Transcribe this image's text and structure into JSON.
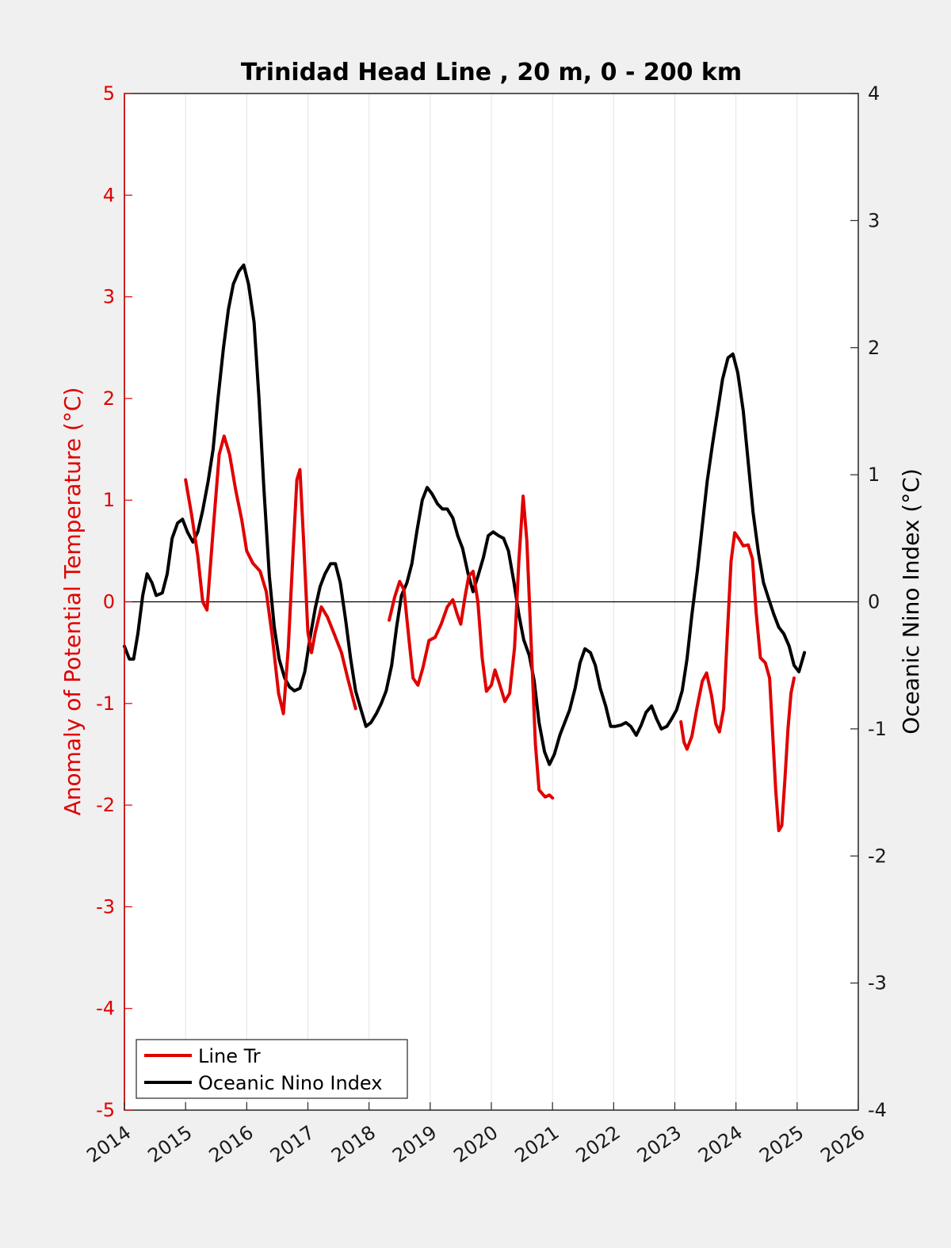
{
  "chart_data": {
    "type": "line",
    "title": "Trinidad Head Line , 20 m, 0 - 200 km",
    "xlabel": "",
    "ylabel_left": "Anomaly of Potential Temperature (°C)",
    "ylabel_right": "Oceanic Nino Index (°C)",
    "xlim": [
      2014,
      2026
    ],
    "ylim_left": [
      -5,
      5
    ],
    "ylim_right": [
      -4,
      4
    ],
    "x_ticks": [
      "2014",
      "2015",
      "2016",
      "2017",
      "2018",
      "2019",
      "2020",
      "2021",
      "2022",
      "2023",
      "2024",
      "2025",
      "2026"
    ],
    "y_ticks_left": [
      "-5",
      "-4",
      "-3",
      "-2",
      "-1",
      "0",
      "1",
      "2",
      "3",
      "4",
      "5"
    ],
    "y_ticks_right": [
      "-4",
      "-3",
      "-2",
      "-1",
      "0",
      "1",
      "2",
      "3",
      "4"
    ],
    "grid": "vertical",
    "legend_position": "bottom-left",
    "colors": {
      "line_tr": "#e00000",
      "oni": "#000000",
      "left_axis": "#e00000"
    },
    "series": [
      {
        "name": "Line Tr",
        "axis": "left",
        "segments": [
          [
            [
              2015.0,
              1.2
            ],
            [
              2015.1,
              0.85
            ],
            [
              2015.2,
              0.45
            ],
            [
              2015.28,
              0.0
            ],
            [
              2015.35,
              -0.08
            ],
            [
              2015.45,
              0.7
            ],
            [
              2015.55,
              1.45
            ],
            [
              2015.63,
              1.63
            ],
            [
              2015.72,
              1.45
            ],
            [
              2015.82,
              1.1
            ],
            [
              2015.92,
              0.8
            ],
            [
              2016.0,
              0.5
            ],
            [
              2016.1,
              0.38
            ],
            [
              2016.22,
              0.3
            ],
            [
              2016.32,
              0.1
            ],
            [
              2016.42,
              -0.35
            ],
            [
              2016.52,
              -0.9
            ],
            [
              2016.6,
              -1.1
            ],
            [
              2016.68,
              -0.45
            ],
            [
              2016.75,
              0.4
            ],
            [
              2016.82,
              1.2
            ],
            [
              2016.87,
              1.3
            ],
            [
              2016.93,
              0.6
            ],
            [
              2017.0,
              -0.3
            ],
            [
              2017.06,
              -0.5
            ],
            [
              2017.12,
              -0.3
            ],
            [
              2017.22,
              -0.05
            ],
            [
              2017.32,
              -0.15
            ],
            [
              2017.42,
              -0.3
            ],
            [
              2017.55,
              -0.5
            ],
            [
              2017.65,
              -0.75
            ],
            [
              2017.78,
              -1.05
            ]
          ],
          [
            [
              2018.33,
              -0.18
            ],
            [
              2018.42,
              0.05
            ],
            [
              2018.5,
              0.2
            ],
            [
              2018.57,
              0.12
            ],
            [
              2018.65,
              -0.35
            ],
            [
              2018.72,
              -0.75
            ],
            [
              2018.8,
              -0.82
            ],
            [
              2018.88,
              -0.65
            ],
            [
              2018.98,
              -0.38
            ],
            [
              2019.08,
              -0.35
            ],
            [
              2019.18,
              -0.22
            ],
            [
              2019.28,
              -0.05
            ],
            [
              2019.37,
              0.02
            ],
            [
              2019.44,
              -0.12
            ],
            [
              2019.5,
              -0.22
            ],
            [
              2019.57,
              0.05
            ],
            [
              2019.63,
              0.25
            ],
            [
              2019.7,
              0.3
            ],
            [
              2019.78,
              0.0
            ],
            [
              2019.85,
              -0.55
            ],
            [
              2019.92,
              -0.88
            ],
            [
              2020.0,
              -0.82
            ],
            [
              2020.06,
              -0.67
            ],
            [
              2020.13,
              -0.8
            ],
            [
              2020.22,
              -0.98
            ],
            [
              2020.3,
              -0.9
            ],
            [
              2020.38,
              -0.45
            ],
            [
              2020.45,
              0.4
            ],
            [
              2020.52,
              1.04
            ],
            [
              2020.58,
              0.6
            ],
            [
              2020.65,
              -0.4
            ],
            [
              2020.72,
              -1.4
            ],
            [
              2020.78,
              -1.85
            ],
            [
              2020.88,
              -1.92
            ],
            [
              2020.95,
              -1.9
            ],
            [
              2021.0,
              -1.93
            ]
          ],
          [
            [
              2023.1,
              -1.18
            ],
            [
              2023.15,
              -1.38
            ],
            [
              2023.2,
              -1.45
            ],
            [
              2023.28,
              -1.32
            ],
            [
              2023.36,
              -1.05
            ],
            [
              2023.45,
              -0.78
            ],
            [
              2023.52,
              -0.7
            ],
            [
              2023.6,
              -0.92
            ],
            [
              2023.67,
              -1.2
            ],
            [
              2023.73,
              -1.28
            ],
            [
              2023.8,
              -1.05
            ],
            [
              2023.86,
              -0.3
            ],
            [
              2023.92,
              0.4
            ],
            [
              2023.98,
              0.68
            ],
            [
              2024.05,
              0.62
            ],
            [
              2024.12,
              0.55
            ],
            [
              2024.2,
              0.56
            ],
            [
              2024.27,
              0.42
            ],
            [
              2024.33,
              -0.1
            ],
            [
              2024.4,
              -0.55
            ],
            [
              2024.48,
              -0.6
            ],
            [
              2024.55,
              -0.75
            ],
            [
              2024.6,
              -1.3
            ],
            [
              2024.65,
              -1.85
            ],
            [
              2024.7,
              -2.25
            ],
            [
              2024.75,
              -2.2
            ],
            [
              2024.8,
              -1.75
            ],
            [
              2024.85,
              -1.25
            ],
            [
              2024.9,
              -0.9
            ],
            [
              2024.95,
              -0.75
            ]
          ]
        ]
      },
      {
        "name": "Oceanic Nino Index",
        "axis": "right",
        "segments": [
          [
            [
              2014.0,
              -0.35
            ],
            [
              2014.08,
              -0.45
            ],
            [
              2014.15,
              -0.45
            ],
            [
              2014.22,
              -0.25
            ],
            [
              2014.3,
              0.05
            ],
            [
              2014.37,
              0.22
            ],
            [
              2014.45,
              0.15
            ],
            [
              2014.52,
              0.05
            ],
            [
              2014.62,
              0.07
            ],
            [
              2014.7,
              0.22
            ],
            [
              2014.78,
              0.5
            ],
            [
              2014.87,
              0.62
            ],
            [
              2014.95,
              0.65
            ],
            [
              2015.03,
              0.55
            ],
            [
              2015.12,
              0.47
            ],
            [
              2015.2,
              0.55
            ],
            [
              2015.28,
              0.72
            ],
            [
              2015.37,
              0.95
            ],
            [
              2015.45,
              1.2
            ],
            [
              2015.53,
              1.6
            ],
            [
              2015.62,
              2.0
            ],
            [
              2015.7,
              2.3
            ],
            [
              2015.78,
              2.5
            ],
            [
              2015.87,
              2.6
            ],
            [
              2015.95,
              2.65
            ],
            [
              2016.03,
              2.5
            ],
            [
              2016.12,
              2.2
            ],
            [
              2016.2,
              1.6
            ],
            [
              2016.28,
              0.9
            ],
            [
              2016.37,
              0.2
            ],
            [
              2016.45,
              -0.2
            ],
            [
              2016.53,
              -0.45
            ],
            [
              2016.62,
              -0.6
            ],
            [
              2016.7,
              -0.67
            ],
            [
              2016.78,
              -0.7
            ],
            [
              2016.87,
              -0.68
            ],
            [
              2016.95,
              -0.55
            ],
            [
              2017.03,
              -0.3
            ],
            [
              2017.12,
              -0.05
            ],
            [
              2017.2,
              0.12
            ],
            [
              2017.28,
              0.22
            ],
            [
              2017.37,
              0.3
            ],
            [
              2017.45,
              0.3
            ],
            [
              2017.53,
              0.15
            ],
            [
              2017.62,
              -0.15
            ],
            [
              2017.7,
              -0.45
            ],
            [
              2017.78,
              -0.7
            ],
            [
              2017.87,
              -0.85
            ],
            [
              2017.95,
              -0.98
            ],
            [
              2018.03,
              -0.95
            ],
            [
              2018.12,
              -0.88
            ],
            [
              2018.2,
              -0.8
            ],
            [
              2018.28,
              -0.7
            ],
            [
              2018.37,
              -0.5
            ],
            [
              2018.45,
              -0.2
            ],
            [
              2018.53,
              0.05
            ],
            [
              2018.62,
              0.15
            ],
            [
              2018.7,
              0.3
            ],
            [
              2018.78,
              0.55
            ],
            [
              2018.87,
              0.8
            ],
            [
              2018.95,
              0.9
            ],
            [
              2019.03,
              0.85
            ],
            [
              2019.12,
              0.77
            ],
            [
              2019.2,
              0.73
            ],
            [
              2019.28,
              0.73
            ],
            [
              2019.37,
              0.66
            ],
            [
              2019.45,
              0.52
            ],
            [
              2019.53,
              0.42
            ],
            [
              2019.62,
              0.22
            ],
            [
              2019.7,
              0.08
            ],
            [
              2019.78,
              0.2
            ],
            [
              2019.87,
              0.35
            ],
            [
              2019.95,
              0.52
            ],
            [
              2020.03,
              0.55
            ],
            [
              2020.12,
              0.52
            ],
            [
              2020.2,
              0.5
            ],
            [
              2020.28,
              0.4
            ],
            [
              2020.37,
              0.15
            ],
            [
              2020.45,
              -0.1
            ],
            [
              2020.53,
              -0.3
            ],
            [
              2020.62,
              -0.42
            ],
            [
              2020.7,
              -0.62
            ],
            [
              2020.78,
              -0.95
            ],
            [
              2020.87,
              -1.18
            ],
            [
              2020.95,
              -1.28
            ],
            [
              2021.03,
              -1.2
            ],
            [
              2021.12,
              -1.05
            ],
            [
              2021.2,
              -0.95
            ],
            [
              2021.28,
              -0.85
            ],
            [
              2021.37,
              -0.68
            ],
            [
              2021.45,
              -0.48
            ],
            [
              2021.53,
              -0.37
            ],
            [
              2021.62,
              -0.4
            ],
            [
              2021.7,
              -0.5
            ],
            [
              2021.78,
              -0.68
            ],
            [
              2021.87,
              -0.82
            ],
            [
              2021.95,
              -0.98
            ],
            [
              2022.03,
              -0.98
            ],
            [
              2022.12,
              -0.97
            ],
            [
              2022.2,
              -0.95
            ],
            [
              2022.28,
              -0.98
            ],
            [
              2022.37,
              -1.05
            ],
            [
              2022.45,
              -0.97
            ],
            [
              2022.53,
              -0.87
            ],
            [
              2022.62,
              -0.82
            ],
            [
              2022.7,
              -0.92
            ],
            [
              2022.78,
              -1.0
            ],
            [
              2022.87,
              -0.98
            ],
            [
              2022.95,
              -0.92
            ],
            [
              2023.03,
              -0.85
            ],
            [
              2023.12,
              -0.7
            ],
            [
              2023.2,
              -0.45
            ],
            [
              2023.28,
              -0.1
            ],
            [
              2023.37,
              0.25
            ],
            [
              2023.45,
              0.6
            ],
            [
              2023.53,
              0.95
            ],
            [
              2023.62,
              1.25
            ],
            [
              2023.7,
              1.5
            ],
            [
              2023.78,
              1.75
            ],
            [
              2023.87,
              1.92
            ],
            [
              2023.95,
              1.95
            ],
            [
              2024.03,
              1.8
            ],
            [
              2024.12,
              1.5
            ],
            [
              2024.2,
              1.1
            ],
            [
              2024.28,
              0.7
            ],
            [
              2024.37,
              0.38
            ],
            [
              2024.45,
              0.15
            ],
            [
              2024.53,
              0.03
            ],
            [
              2024.62,
              -0.1
            ],
            [
              2024.7,
              -0.2
            ],
            [
              2024.78,
              -0.25
            ],
            [
              2024.87,
              -0.35
            ],
            [
              2024.95,
              -0.5
            ],
            [
              2025.03,
              -0.55
            ],
            [
              2025.12,
              -0.4
            ]
          ]
        ]
      }
    ]
  }
}
